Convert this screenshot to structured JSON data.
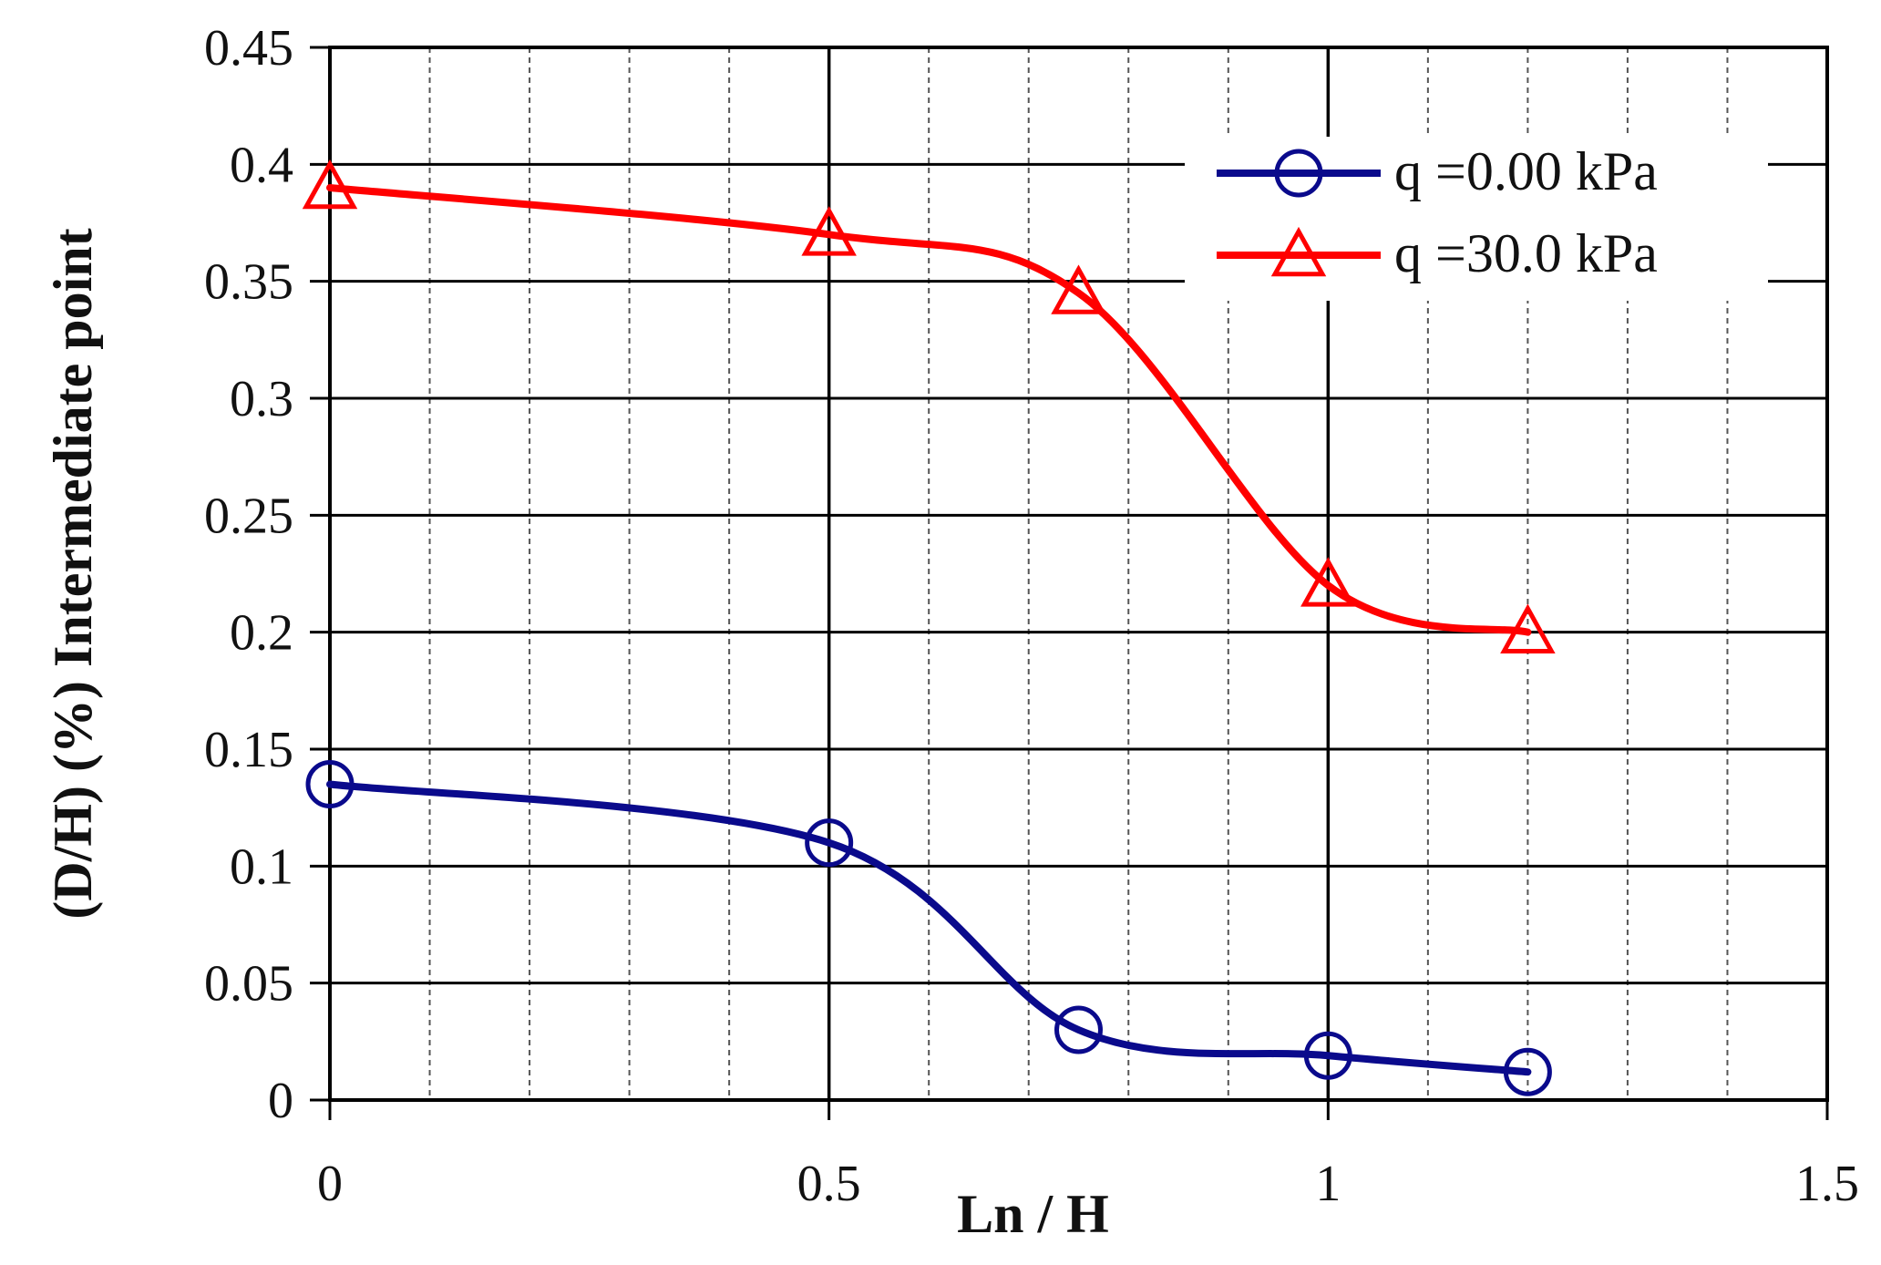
{
  "chart_data": {
    "type": "line",
    "title": "",
    "xlabel": "Ln / H",
    "ylabel": "(D/H) (%) Intermediate point",
    "xlim": [
      0,
      1.5
    ],
    "ylim": [
      0,
      0.45
    ],
    "x_ticks": [
      "0",
      "0.5",
      "1",
      "1.5"
    ],
    "y_ticks": [
      "0",
      "0.05",
      "0.1",
      "0.15",
      "0.2",
      "0.25",
      "0.3",
      "0.35",
      "0.4",
      "0.45"
    ],
    "grid": true,
    "legend_position": "top-right",
    "series": [
      {
        "name": "q =0.00 kPa",
        "color": "#0a0a8c",
        "marker": "circle",
        "x": [
          0,
          0.5,
          0.75,
          1.0,
          1.2
        ],
        "y": [
          0.135,
          0.11,
          0.03,
          0.019,
          0.012
        ]
      },
      {
        "name": "q =30.0 kPa",
        "color": "#ff0000",
        "marker": "triangle",
        "x": [
          0,
          0.5,
          0.75,
          1.0,
          1.2
        ],
        "y": [
          0.39,
          0.37,
          0.345,
          0.22,
          0.2
        ]
      }
    ]
  }
}
